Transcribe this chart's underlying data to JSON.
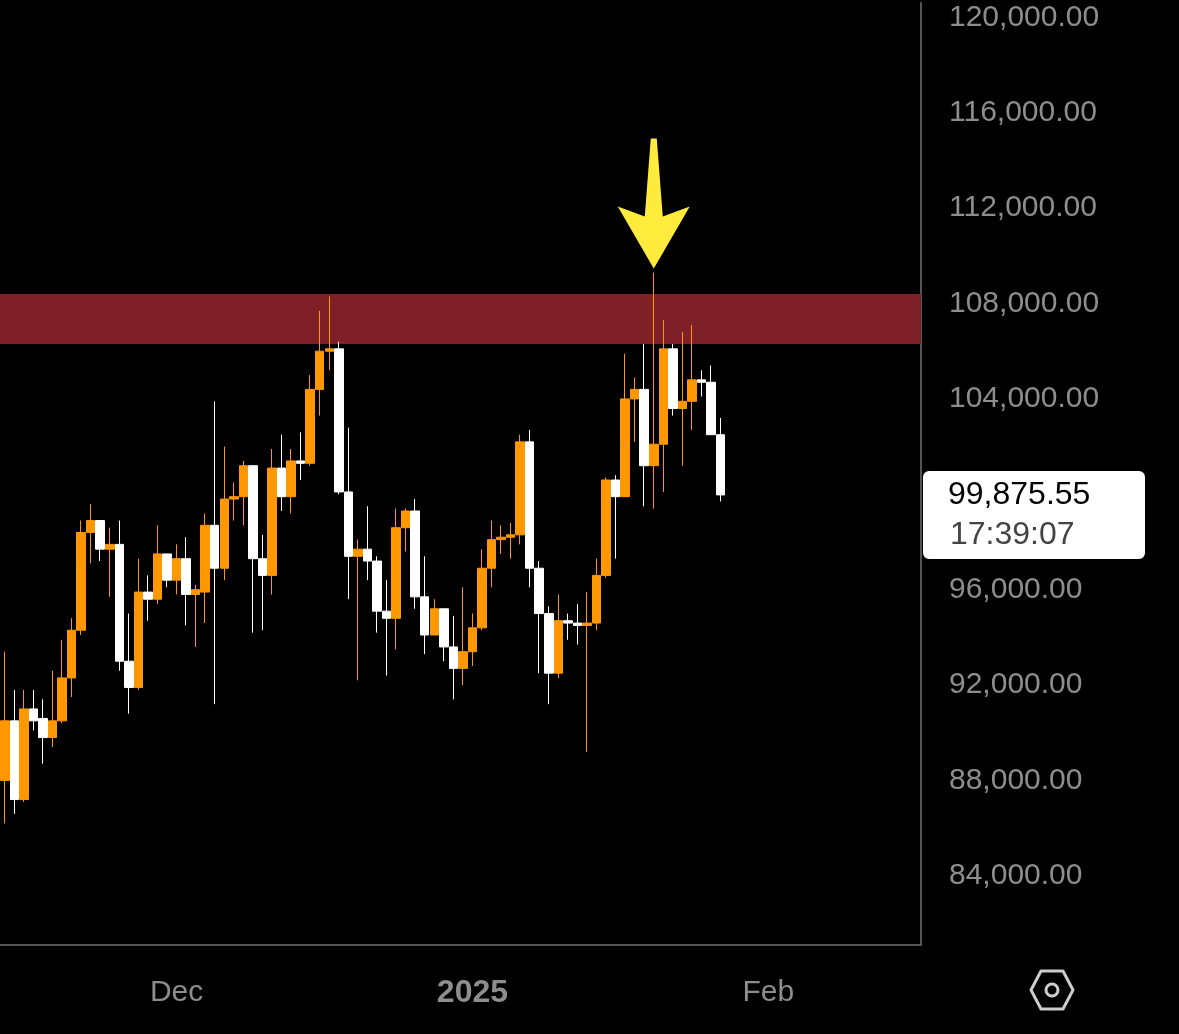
{
  "chart_data": {
    "type": "candlestick",
    "x": [
      "2024-11-13",
      "2024-11-14",
      "2024-11-15",
      "2024-11-16",
      "2024-11-17",
      "2024-11-18",
      "2024-11-19",
      "2024-11-20",
      "2024-11-21",
      "2024-11-22",
      "2024-11-23",
      "2024-11-24",
      "2024-11-25",
      "2024-11-26",
      "2024-11-27",
      "2024-11-28",
      "2024-11-29",
      "2024-11-30",
      "2024-12-01",
      "2024-12-02",
      "2024-12-03",
      "2024-12-04",
      "2024-12-05",
      "2024-12-06",
      "2024-12-07",
      "2024-12-08",
      "2024-12-09",
      "2024-12-10",
      "2024-12-11",
      "2024-12-12",
      "2024-12-13",
      "2024-12-14",
      "2024-12-15",
      "2024-12-16",
      "2024-12-17",
      "2024-12-18",
      "2024-12-19",
      "2024-12-20",
      "2024-12-21",
      "2024-12-22",
      "2024-12-23",
      "2024-12-24",
      "2024-12-25",
      "2024-12-26",
      "2024-12-27",
      "2024-12-28",
      "2024-12-29",
      "2024-12-30",
      "2024-12-31",
      "2025-01-01",
      "2025-01-02",
      "2025-01-03",
      "2025-01-04",
      "2025-01-05",
      "2025-01-06",
      "2025-01-07",
      "2025-01-08",
      "2025-01-09",
      "2025-01-10",
      "2025-01-11",
      "2025-01-12",
      "2025-01-13",
      "2025-01-14",
      "2025-01-15",
      "2025-01-16",
      "2025-01-17",
      "2025-01-18",
      "2025-01-19",
      "2025-01-20",
      "2025-01-21",
      "2025-01-22",
      "2025-01-23",
      "2025-01-24",
      "2025-01-25",
      "2025-01-26",
      "2025-01-27"
    ],
    "ohlc": [
      [
        87900,
        93300,
        86100,
        90400
      ],
      [
        90400,
        91700,
        86500,
        87100
      ],
      [
        87100,
        91700,
        87000,
        90900
      ],
      [
        90900,
        91700,
        90000,
        90400
      ],
      [
        90500,
        91300,
        88600,
        89700
      ],
      [
        89700,
        92500,
        89300,
        90400
      ],
      [
        90400,
        93800,
        90300,
        92200
      ],
      [
        92200,
        94700,
        91400,
        94200
      ],
      [
        94200,
        98800,
        94000,
        98300
      ],
      [
        98300,
        99500,
        97000,
        98800
      ],
      [
        98800,
        98800,
        97100,
        97600
      ],
      [
        97600,
        98500,
        95600,
        97800
      ],
      [
        97800,
        98800,
        92500,
        92900
      ],
      [
        92900,
        94900,
        90700,
        91800
      ],
      [
        91800,
        97200,
        91700,
        95800
      ],
      [
        95800,
        96500,
        94600,
        95500
      ],
      [
        95500,
        98600,
        95300,
        97400
      ],
      [
        97400,
        97400,
        96000,
        96300
      ],
      [
        96300,
        97800,
        95700,
        97200
      ],
      [
        97200,
        98100,
        94400,
        95700
      ],
      [
        95700,
        96100,
        93500,
        95900
      ],
      [
        95800,
        99100,
        94500,
        98600
      ],
      [
        98600,
        103800,
        91100,
        96800
      ],
      [
        96800,
        101900,
        96300,
        99700
      ],
      [
        99700,
        100400,
        98800,
        99800
      ],
      [
        99800,
        101300,
        98600,
        101100
      ],
      [
        101100,
        101100,
        94100,
        97200
      ],
      [
        97200,
        98200,
        94200,
        96500
      ],
      [
        96500,
        101800,
        95700,
        101000
      ],
      [
        101000,
        102400,
        99200,
        99800
      ],
      [
        99800,
        101800,
        99100,
        101300
      ],
      [
        101300,
        102500,
        100500,
        101200
      ],
      [
        101200,
        104900,
        101100,
        104300
      ],
      [
        104300,
        107600,
        103200,
        105900
      ],
      [
        105900,
        108200,
        105100,
        106000
      ],
      [
        106000,
        106300,
        99900,
        100000
      ],
      [
        100000,
        102700,
        95500,
        97300
      ],
      [
        97300,
        98000,
        92100,
        97600
      ],
      [
        97600,
        99400,
        96300,
        97100
      ],
      [
        97100,
        97300,
        94100,
        95000
      ],
      [
        95000,
        96300,
        92300,
        94700
      ],
      [
        94700,
        99300,
        93400,
        98500
      ],
      [
        98500,
        99300,
        97500,
        99200
      ],
      [
        99200,
        99700,
        95100,
        95600
      ],
      [
        95600,
        97300,
        93200,
        94000
      ],
      [
        94000,
        95500,
        94000,
        95100
      ],
      [
        95100,
        95100,
        92900,
        93500
      ],
      [
        93500,
        94800,
        91300,
        92600
      ],
      [
        92600,
        96000,
        91900,
        93300
      ],
      [
        93300,
        94900,
        92700,
        94300
      ],
      [
        94300,
        97600,
        94200,
        96800
      ],
      [
        96800,
        98800,
        96000,
        98000
      ],
      [
        98000,
        98600,
        97400,
        98100
      ],
      [
        98100,
        98700,
        97200,
        98200
      ],
      [
        98200,
        102400,
        97800,
        102100
      ],
      [
        102100,
        102600,
        96000,
        96800
      ],
      [
        96800,
        97100,
        92400,
        94900
      ],
      [
        94900,
        95200,
        91100,
        92400
      ],
      [
        92400,
        95700,
        92200,
        94600
      ],
      [
        94600,
        94900,
        93800,
        94500
      ],
      [
        94500,
        95300,
        93600,
        94400
      ],
      [
        94400,
        95800,
        89100,
        94500
      ],
      [
        94500,
        97200,
        94200,
        96500
      ],
      [
        96500,
        100600,
        96400,
        100500
      ],
      [
        100500,
        100700,
        97200,
        99800
      ],
      [
        99800,
        105800,
        99800,
        103900
      ],
      [
        103900,
        104800,
        102100,
        104300
      ],
      [
        104300,
        106200,
        99400,
        101100
      ],
      [
        101100,
        109200,
        99300,
        102000
      ],
      [
        102000,
        107200,
        100000,
        106000
      ],
      [
        106000,
        106200,
        103200,
        103500
      ],
      [
        103500,
        106700,
        101100,
        103800
      ],
      [
        103800,
        107000,
        102600,
        104700
      ],
      [
        104700,
        105100,
        104000,
        104600
      ],
      [
        104600,
        105300,
        102400,
        102400
      ],
      [
        102400,
        103100,
        99600,
        99875.55
      ]
    ],
    "colors": [
      "#ff9800",
      "#ffffff",
      "#ff9800",
      "#ffffff",
      "#ffffff",
      "#ff9800",
      "#ff9800",
      "#ff9800",
      "#ff9800",
      "#ff9800",
      "#ffffff",
      "#ff9800",
      "#ffffff",
      "#ffffff",
      "#ff9800",
      "#ffffff",
      "#ff9800",
      "#ffffff",
      "#ff9800",
      "#ffffff",
      "#ff9800",
      "#ff9800",
      "#ffffff",
      "#ff9800",
      "#ff9800",
      "#ff9800",
      "#ffffff",
      "#ffffff",
      "#ff9800",
      "#ffffff",
      "#ff9800",
      "#ffffff",
      "#ff9800",
      "#ff9800",
      "#ff9800",
      "#ffffff",
      "#ffffff",
      "#ff9800",
      "#ffffff",
      "#ffffff",
      "#ffffff",
      "#ff9800",
      "#ff9800",
      "#ffffff",
      "#ffffff",
      "#ff9800",
      "#ffffff",
      "#ffffff",
      "#ff9800",
      "#ff9800",
      "#ff9800",
      "#ff9800",
      "#ff9800",
      "#ff9800",
      "#ff9800",
      "#ffffff",
      "#ffffff",
      "#ffffff",
      "#ff9800",
      "#ffffff",
      "#ffffff",
      "#ff9800",
      "#ff9800",
      "#ff9800",
      "#ffffff",
      "#ff9800",
      "#ff9800",
      "#ffffff",
      "#ff9800",
      "#ff9800",
      "#ffffff",
      "#ff9800",
      "#ff9800",
      "#ffffff",
      "#ffffff",
      "#ffffff"
    ],
    "xlim": [
      "2024-11-12T12:00",
      "2025-02-17"
    ],
    "xticks": [
      {
        "value": "2024-12-01",
        "label": "Dec"
      },
      {
        "value": "2025-01-01",
        "label": "2025"
      },
      {
        "value": "2025-02-01",
        "label": "Feb"
      }
    ],
    "ylim": [
      81000,
      120500
    ],
    "yticks": [
      {
        "value": 84000,
        "label": "84,000.00"
      },
      {
        "value": 88000,
        "label": "88,000.00"
      },
      {
        "value": 92000,
        "label": "92,000.00"
      },
      {
        "value": 96000,
        "label": "96,000.00"
      },
      {
        "value": 104000,
        "label": "104,000.00"
      },
      {
        "value": 108000,
        "label": "108,000.00"
      },
      {
        "value": 112000,
        "label": "112,000.00"
      },
      {
        "value": 116000,
        "label": "116,000.00"
      },
      {
        "value": 120000,
        "label": "120,000.00"
      }
    ],
    "bands": [
      {
        "axis": "y",
        "from": 106200,
        "to": 108300,
        "color": "#7f1f27"
      }
    ],
    "annotations": [
      "99,875.55",
      "17:39:07"
    ]
  }
}
